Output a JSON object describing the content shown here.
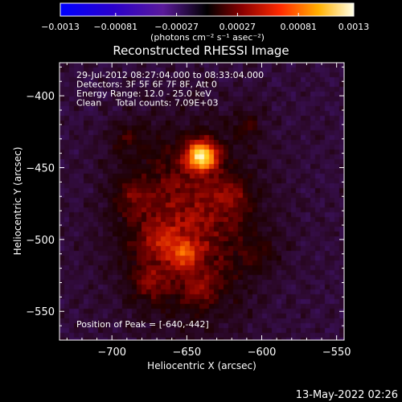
{
  "chart_data": {
    "type": "heatmap",
    "title": "Reconstructed RHESSI Image",
    "xlabel": "Heliocentric X (arcsec)",
    "ylabel": "Heliocentric Y (arcsec)",
    "xlim": [
      -735,
      -545
    ],
    "ylim": [
      -570,
      -377
    ],
    "x_ticks": [
      -700,
      -650,
      -600,
      -550
    ],
    "x_tick_labels": [
      "−700",
      "−650",
      "−600",
      "−550"
    ],
    "y_ticks": [
      -400,
      -450,
      -500,
      -550
    ],
    "y_tick_labels": [
      "−400",
      "−450",
      "−500",
      "−550"
    ],
    "peak": [
      -640,
      -442
    ],
    "colorbar": {
      "range": [
        -0.0013,
        0.0013
      ],
      "ticks": [
        -0.0013,
        -0.00081,
        -0.00027,
        0.00027,
        0.00081,
        0.0013
      ],
      "tick_labels": [
        "−0.0013",
        "−0.00081",
        "−0.00027",
        "0.00027",
        "0.00081",
        "0.0013"
      ],
      "unit_label": "(photons cm⁻² s⁻¹ asec⁻²)"
    },
    "annotations": [
      "29-Jul-2012 08:27:04.000 to 08:33:04.000",
      "Detectors: 3F 5F 6F 7F 8F, Att 0",
      "Energy Range: 12.0 - 25.0 keV",
      "Clean     Total counts: 7.09E+03"
    ],
    "peak_label": "Position of Peak = [-640,-442]",
    "timestamp": "13-May-2022 02:26",
    "sources": [
      {
        "x": -640,
        "y": -442,
        "amp": 1.0,
        "sigma": 7
      },
      {
        "x": -652,
        "y": -510,
        "amp": 0.38,
        "sigma": 7
      },
      {
        "x": -668,
        "y": -500,
        "amp": 0.22,
        "sigma": 8
      },
      {
        "x": -685,
        "y": -470,
        "amp": 0.16,
        "sigma": 9
      },
      {
        "x": -620,
        "y": -470,
        "amp": 0.18,
        "sigma": 9
      },
      {
        "x": -675,
        "y": -530,
        "amp": 0.2,
        "sigma": 8
      },
      {
        "x": -640,
        "y": -535,
        "amp": 0.18,
        "sigma": 8
      },
      {
        "x": -690,
        "y": -430,
        "amp": 0.15,
        "sigma": 9
      },
      {
        "x": -610,
        "y": -420,
        "amp": 0.14,
        "sigma": 9
      },
      {
        "x": -600,
        "y": -510,
        "amp": 0.12,
        "sigma": 8
      }
    ]
  }
}
